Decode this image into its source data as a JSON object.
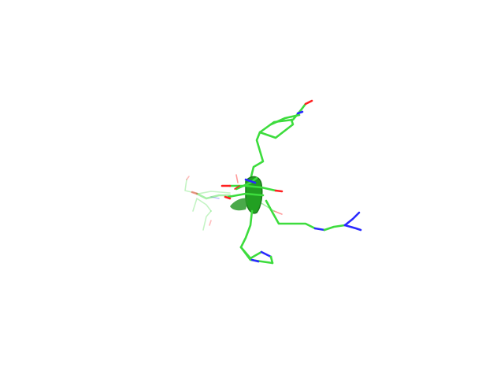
{
  "viewer": {
    "background": "#ffffff"
  },
  "colors": {
    "carbon": "#3ddc3d",
    "carbon_dark": "#2a9a2a",
    "nitrogen": "#2a2aff",
    "nitrogen_dark": "#1a1a8a",
    "oxygen": "#ff2020",
    "backbone_cartoon": "#22a022"
  },
  "representation": {
    "style": "sticks",
    "secondary_structure": "cartoon",
    "side_chains": [
      "tyrosine",
      "arginine",
      "histidine",
      "serine"
    ]
  }
}
